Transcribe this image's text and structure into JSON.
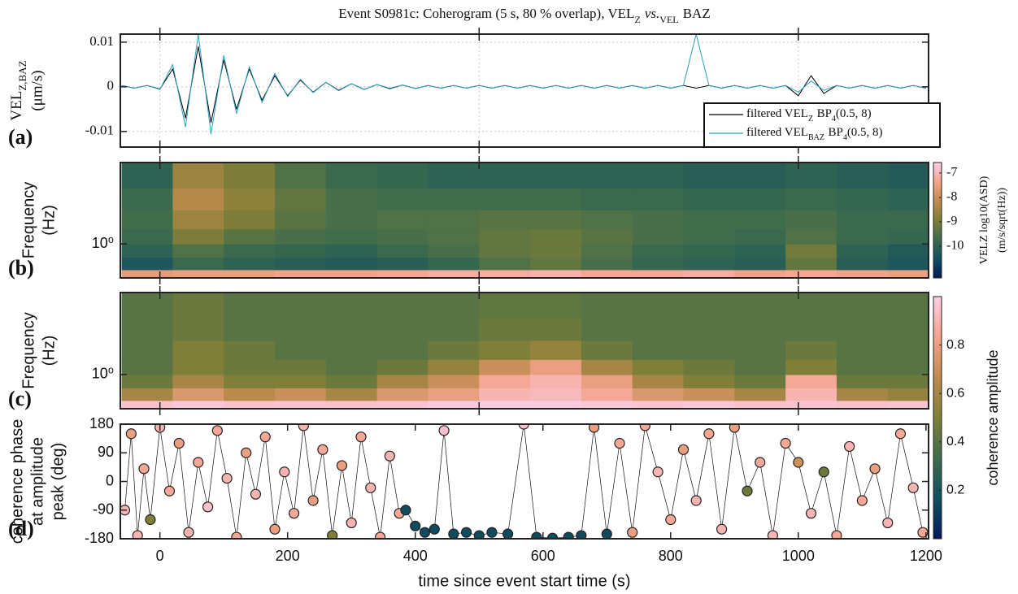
{
  "chart_data": [
    {
      "type": "line",
      "label": "(a)",
      "title": [
        "Event S0981c: Coherogram (5 s, 80 % overlap), VEL",
        "Z",
        "vs.",
        "VEL",
        "BAZ"
      ],
      "ylabel": [
        [
          "VEL",
          "Z,BAZ"
        ],
        "(μm/s)"
      ],
      "x": [
        -60,
        -40,
        -20,
        0,
        20,
        40,
        60,
        80,
        100,
        120,
        140,
        160,
        180,
        200,
        220,
        240,
        260,
        280,
        300,
        320,
        340,
        360,
        380,
        400,
        420,
        440,
        460,
        480,
        500,
        520,
        540,
        560,
        580,
        600,
        620,
        640,
        660,
        680,
        700,
        720,
        740,
        760,
        780,
        800,
        820,
        840,
        860,
        880,
        900,
        920,
        940,
        960,
        980,
        1000,
        1020,
        1040,
        1060,
        1080,
        1100,
        1120,
        1140,
        1160,
        1180,
        1200
      ],
      "xlim": [
        -62,
        1204
      ],
      "xticks": [
        0,
        500,
        1000
      ],
      "ylim": [
        -0.0135,
        0.0118
      ],
      "yticks": [
        -0.01,
        0,
        0.01
      ],
      "grid": true,
      "legend": "lower right",
      "series": [
        {
          "name": [
            "filtered VEL",
            "Z",
            "BP",
            "4",
            "(0.5, 8)"
          ],
          "color": "#000000",
          "values": [
            0.0003,
            -0.0003,
            0.0003,
            -0.0005,
            0.004,
            -0.007,
            0.009,
            -0.008,
            0.006,
            -0.005,
            0.004,
            -0.003,
            0.0025,
            -0.002,
            0.0015,
            -0.0012,
            0.001,
            -0.0008,
            0.0007,
            -0.0006,
            0.0005,
            -0.0004,
            0.0004,
            -0.0004,
            0.0003,
            -0.0003,
            0.0003,
            -0.0003,
            0.0003,
            -0.0003,
            0.0003,
            -0.0003,
            0.0003,
            -0.0003,
            0.0003,
            -0.0003,
            0.0003,
            -0.0003,
            0.0003,
            -0.0003,
            0.0003,
            -0.0003,
            0.0003,
            -0.0003,
            0.0003,
            -0.0003,
            0.0003,
            -0.0003,
            0.0003,
            -0.0003,
            0.0003,
            -0.0003,
            0.0003,
            -0.002,
            0.0025,
            -0.0015,
            0.0003,
            -0.0003,
            0.0003,
            -0.0003,
            0.0003,
            -0.0003,
            0.0003,
            -0.0003
          ]
        },
        {
          "name": [
            "filtered VEL",
            "BAZ",
            "BP",
            "4",
            "(0.5, 8)"
          ],
          "color": "#2b9fbe",
          "values": [
            0.0003,
            -0.0003,
            0.0003,
            -0.0006,
            0.005,
            -0.009,
            0.0118,
            -0.0105,
            0.007,
            -0.006,
            0.0045,
            -0.0035,
            0.003,
            -0.0022,
            0.0017,
            -0.0013,
            0.001,
            -0.0009,
            0.0007,
            -0.0006,
            0.0005,
            -0.0005,
            0.0004,
            -0.0004,
            0.0003,
            -0.0003,
            0.0003,
            -0.0003,
            0.0003,
            -0.0003,
            0.0003,
            -0.0003,
            0.0003,
            -0.0003,
            0.0003,
            -0.0003,
            0.0003,
            -0.0003,
            0.0003,
            -0.0003,
            0.0003,
            -0.0003,
            0.0003,
            -0.0003,
            0.0003,
            0.0118,
            0.0003,
            -0.0003,
            0.0003,
            -0.0003,
            0.0003,
            -0.0003,
            0.0003,
            -0.0012,
            0.0013,
            -0.0008,
            0.0003,
            -0.0003,
            0.0003,
            -0.0003,
            0.0003,
            -0.0003,
            0.0003,
            -0.0003
          ]
        }
      ]
    },
    {
      "type": "heatmap",
      "label": "(b)",
      "ylabel": [
        "Frequency",
        "(Hz)"
      ],
      "xbins": [
        -60,
        20,
        100,
        180,
        260,
        340,
        420,
        500,
        580,
        660,
        740,
        820,
        900,
        980,
        1060,
        1140,
        1220
      ],
      "ybins": [
        0.4,
        0.5,
        0.7,
        1,
        1.5,
        2.5,
        4.5,
        9
      ],
      "xlim": [
        -62,
        1204
      ],
      "xticks": [
        0,
        500,
        1000
      ],
      "ylim": [
        0.4,
        9
      ],
      "yscale": "log",
      "yticks": [
        {
          "value": 1,
          "label": "10⁰"
        }
      ],
      "values": [
        [
          -7.6,
          -7.5,
          -7.5,
          -7.4,
          -7.4,
          -7.3,
          -7.2,
          -7.2,
          -7.1,
          -7.3,
          -7.3,
          -7.2,
          -7.4,
          -7.3,
          -7.4,
          -7.5
        ],
        [
          -10.3,
          -9.8,
          -10,
          -10.1,
          -10.2,
          -10.1,
          -9.9,
          -9.5,
          -9.3,
          -9.6,
          -9.9,
          -10,
          -10.1,
          -9.3,
          -10.1,
          -10.3
        ],
        [
          -10,
          -9.5,
          -9.8,
          -9.9,
          -10,
          -9.8,
          -9.6,
          -9.3,
          -9.2,
          -9.5,
          -9.8,
          -9.9,
          -10,
          -9.1,
          -10,
          -10.2
        ],
        [
          -9.8,
          -9,
          -9.4,
          -9.6,
          -9.7,
          -9.6,
          -9.5,
          -9.3,
          -9.2,
          -9.4,
          -9.6,
          -9.7,
          -9.8,
          -9.5,
          -9.8,
          -9.9
        ],
        [
          -9.7,
          -8.6,
          -9,
          -9.4,
          -9.6,
          -9.5,
          -9.5,
          -9.4,
          -9.4,
          -9.5,
          -9.6,
          -9.7,
          -9.7,
          -9.6,
          -9.8,
          -9.8
        ],
        [
          -9.8,
          -8.3,
          -8.8,
          -9.3,
          -9.6,
          -9.7,
          -9.7,
          -9.7,
          -9.7,
          -9.8,
          -9.8,
          -9.9,
          -9.9,
          -9.8,
          -9.9,
          -10
        ],
        [
          -10,
          -8.6,
          -9,
          -9.5,
          -9.8,
          -9.9,
          -10,
          -10,
          -10,
          -10,
          -10,
          -10.1,
          -10.1,
          -10,
          -10.1,
          -10.2
        ]
      ],
      "clim": [
        -11.3,
        -6.57
      ],
      "cticks": [
        -10,
        -9,
        -8,
        -7
      ],
      "clabel": [
        "VELZ log10(ASD)",
        "(m/s/sqrt(Hz))"
      ],
      "colormap": [
        "#011959",
        "#114f60",
        "#3e6c4c",
        "#807f37",
        "#c08b4f",
        "#f4a48c",
        "#fccde8"
      ]
    },
    {
      "type": "heatmap",
      "label": "(c)",
      "ylabel": [
        "Frequency",
        "(Hz)"
      ],
      "xbins": [
        -60,
        20,
        100,
        180,
        260,
        340,
        420,
        500,
        580,
        660,
        740,
        820,
        900,
        980,
        1060,
        1140,
        1220
      ],
      "ybins": [
        0.4,
        0.5,
        0.7,
        1,
        1.5,
        2.5,
        4.5,
        9
      ],
      "xlim": [
        -62,
        1204
      ],
      "xticks": [
        0,
        500,
        1000
      ],
      "ylim": [
        0.4,
        9
      ],
      "yscale": "log",
      "yticks": [
        {
          "value": 1,
          "label": "10⁰"
        }
      ],
      "values": [
        [
          0.95,
          0.97,
          0.95,
          0.96,
          0.95,
          0.96,
          0.98,
          0.99,
          0.99,
          0.97,
          0.96,
          0.97,
          0.95,
          0.96,
          0.95,
          0.96
        ],
        [
          0.6,
          0.75,
          0.65,
          0.7,
          0.6,
          0.75,
          0.8,
          0.9,
          0.92,
          0.85,
          0.75,
          0.7,
          0.6,
          0.9,
          0.6,
          0.55
        ],
        [
          0.45,
          0.6,
          0.5,
          0.5,
          0.45,
          0.6,
          0.7,
          0.85,
          0.9,
          0.8,
          0.6,
          0.5,
          0.45,
          0.85,
          0.45,
          0.45
        ],
        [
          0.4,
          0.5,
          0.45,
          0.45,
          0.4,
          0.45,
          0.55,
          0.7,
          0.8,
          0.6,
          0.5,
          0.45,
          0.4,
          0.5,
          0.4,
          0.4
        ],
        [
          0.4,
          0.5,
          0.45,
          0.4,
          0.4,
          0.4,
          0.45,
          0.5,
          0.55,
          0.45,
          0.4,
          0.4,
          0.4,
          0.45,
          0.4,
          0.4
        ],
        [
          0.4,
          0.45,
          0.4,
          0.4,
          0.4,
          0.4,
          0.4,
          0.45,
          0.45,
          0.4,
          0.4,
          0.4,
          0.4,
          0.4,
          0.4,
          0.4
        ],
        [
          0.4,
          0.45,
          0.4,
          0.4,
          0.4,
          0.4,
          0.4,
          0.42,
          0.42,
          0.4,
          0.4,
          0.4,
          0.4,
          0.4,
          0.4,
          0.4
        ]
      ],
      "clim": [
        0,
        1
      ],
      "cticks": [
        0.2,
        0.4,
        0.6,
        0.8
      ],
      "clabel": [
        "coherence amplitude"
      ],
      "colormap": [
        "#011959",
        "#114f60",
        "#3e6c4c",
        "#807f37",
        "#c08b4f",
        "#f4a48c",
        "#fccde8"
      ]
    },
    {
      "type": "scatter",
      "label": "(d)",
      "ylabel": [
        "coherence phase",
        "at amplitude",
        "peak (deg)"
      ],
      "xlabel": "time since event start time (s)",
      "x": [
        -55,
        -45,
        -35,
        -25,
        -15,
        0,
        15,
        30,
        45,
        60,
        75,
        90,
        105,
        120,
        135,
        150,
        165,
        180,
        195,
        210,
        225,
        240,
        255,
        270,
        285,
        300,
        315,
        330,
        345,
        360,
        375,
        385,
        400,
        415,
        430,
        445,
        460,
        480,
        500,
        520,
        545,
        570,
        590,
        615,
        640,
        660,
        680,
        700,
        720,
        740,
        760,
        780,
        800,
        820,
        840,
        860,
        880,
        900,
        920,
        940,
        960,
        980,
        1000,
        1020,
        1040,
        1060,
        1080,
        1100,
        1120,
        1140,
        1160,
        1180,
        1195
      ],
      "values": [
        -90,
        150,
        -170,
        40,
        -120,
        170,
        -30,
        120,
        -160,
        60,
        -80,
        160,
        10,
        -175,
        90,
        -40,
        140,
        -150,
        30,
        -100,
        175,
        -60,
        100,
        -170,
        50,
        -130,
        140,
        -20,
        -175,
        80,
        -100,
        -90,
        -140,
        -160,
        -150,
        160,
        -165,
        -160,
        -170,
        -160,
        -165,
        180,
        -175,
        -178,
        -175,
        -170,
        170,
        -165,
        120,
        -160,
        175,
        30,
        -120,
        100,
        -60,
        150,
        -150,
        170,
        -30,
        60,
        -170,
        120,
        60,
        -100,
        30,
        -170,
        110,
        -60,
        40,
        -130,
        150,
        -20,
        -160
      ],
      "c": [
        0.9,
        0.8,
        0.9,
        0.85,
        0.5,
        0.9,
        0.85,
        0.8,
        0.9,
        0.85,
        0.95,
        0.85,
        0.9,
        0.85,
        0.8,
        0.9,
        0.85,
        0.8,
        0.9,
        0.85,
        0.9,
        0.8,
        0.85,
        0.5,
        0.8,
        0.9,
        0.85,
        0.9,
        0.85,
        0.9,
        0.85,
        0.15,
        0.15,
        0.15,
        0.15,
        0.95,
        0.15,
        0.15,
        0.15,
        0.15,
        0.15,
        0.95,
        0.15,
        0.15,
        0.15,
        0.15,
        0.8,
        0.15,
        0.85,
        0.8,
        0.85,
        0.9,
        0.85,
        0.8,
        0.9,
        0.85,
        0.9,
        0.8,
        0.45,
        0.85,
        0.9,
        0.85,
        0.7,
        0.9,
        0.45,
        0.85,
        0.9,
        0.85,
        0.8,
        0.9,
        0.85,
        0.9,
        0.85
      ],
      "xlim": [
        -62,
        1204
      ],
      "xticks": [
        0,
        200,
        400,
        600,
        800,
        1000,
        1200
      ],
      "ylim": [
        -180,
        180
      ],
      "yticks": [
        -180,
        -90,
        0,
        90,
        180
      ],
      "clim": [
        0,
        1
      ],
      "colormap": [
        "#011959",
        "#114f60",
        "#3e6c4c",
        "#807f37",
        "#c08b4f",
        "#f4a48c",
        "#fccde8"
      ]
    }
  ]
}
